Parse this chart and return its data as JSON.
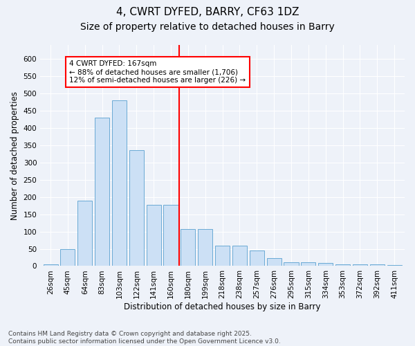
{
  "title1": "4, CWRT DYFED, BARRY, CF63 1DZ",
  "title2": "Size of property relative to detached houses in Barry",
  "xlabel": "Distribution of detached houses by size in Barry",
  "ylabel": "Number of detached properties",
  "categories": [
    "26sqm",
    "45sqm",
    "64sqm",
    "83sqm",
    "103sqm",
    "122sqm",
    "141sqm",
    "160sqm",
    "180sqm",
    "199sqm",
    "218sqm",
    "238sqm",
    "257sqm",
    "276sqm",
    "295sqm",
    "315sqm",
    "334sqm",
    "353sqm",
    "372sqm",
    "392sqm",
    "411sqm"
  ],
  "values": [
    5,
    50,
    190,
    430,
    480,
    335,
    178,
    178,
    108,
    108,
    60,
    60,
    44,
    22,
    11,
    11,
    8,
    5,
    5,
    5,
    3
  ],
  "bar_color": "#cce0f5",
  "bar_edge_color": "#6aaad4",
  "bar_width": 0.85,
  "vline_color": "red",
  "annotation_text": "4 CWRT DYFED: 167sqm\n← 88% of detached houses are smaller (1,706)\n12% of semi-detached houses are larger (226) →",
  "annotation_box_color": "white",
  "annotation_border_color": "red",
  "ylim": [
    0,
    640
  ],
  "yticks": [
    0,
    50,
    100,
    150,
    200,
    250,
    300,
    350,
    400,
    450,
    500,
    550,
    600
  ],
  "footer": "Contains HM Land Registry data © Crown copyright and database right 2025.\nContains public sector information licensed under the Open Government Licence v3.0.",
  "bg_color": "#eef2f9",
  "grid_color": "white",
  "title_fontsize": 11,
  "subtitle_fontsize": 10,
  "axis_label_fontsize": 8.5,
  "tick_fontsize": 7.5,
  "footer_fontsize": 6.5
}
